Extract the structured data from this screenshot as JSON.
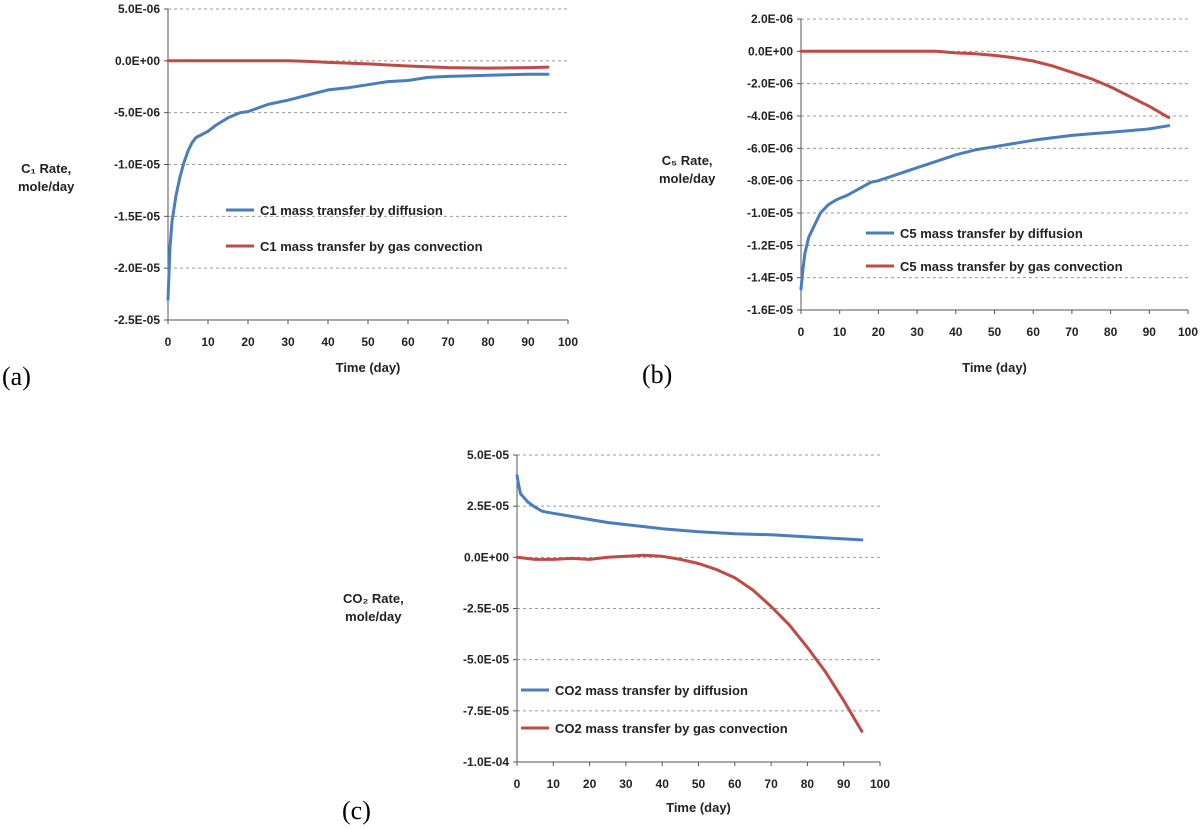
{
  "panel_labels": [
    "(a)",
    "(b)",
    "(c)"
  ],
  "ylabels": [
    {
      "line1": "C₁ Rate,",
      "line2": "mole/day"
    },
    {
      "line1": "C₅ Rate,",
      "line2": "mole/day"
    },
    {
      "line1": "CO₂ Rate,",
      "line2": "mole/day"
    }
  ],
  "colors": {
    "diffusion": "#4a7ebb",
    "convection": "#be4b48"
  },
  "chart_data": [
    {
      "type": "line",
      "xlabel": "Time (day)",
      "ylabel": "C1 Rate, mole/day",
      "xlim": [
        0,
        100
      ],
      "ylim": [
        -2.5e-05,
        5e-06
      ],
      "xticks": [
        0,
        10,
        20,
        30,
        40,
        50,
        60,
        70,
        80,
        90,
        100
      ],
      "yticks": [
        5e-06,
        0,
        -5e-06,
        -1e-05,
        -1.5e-05,
        -2e-05,
        -2.5e-05
      ],
      "yticklabels": [
        "5.0E-06",
        "0.0E+00",
        "-5.0E-06",
        "-1.0E-05",
        "-1.5E-05",
        "-2.0E-05",
        "-2.5E-05"
      ],
      "grid": "horizontal",
      "legend_position": "center-right",
      "series": [
        {
          "name": "C1 mass transfer by diffusion",
          "color": "#4a7ebb",
          "x": [
            0,
            0.5,
            1,
            2,
            3,
            4,
            5,
            6,
            7,
            8,
            10,
            12,
            15,
            18,
            20,
            25,
            30,
            35,
            40,
            45,
            50,
            55,
            60,
            65,
            70,
            75,
            80,
            85,
            90,
            95
          ],
          "y": [
            -2.3e-05,
            -1.8e-05,
            -1.55e-05,
            -1.3e-05,
            -1.12e-05,
            -9.8e-06,
            -8.7e-06,
            -7.9e-06,
            -7.4e-06,
            -7.2e-06,
            -6.8e-06,
            -6.2e-06,
            -5.5e-06,
            -5e-06,
            -4.9e-06,
            -4.2e-06,
            -3.8e-06,
            -3.3e-06,
            -2.8e-06,
            -2.6e-06,
            -2.3e-06,
            -2e-06,
            -1.9e-06,
            -1.6e-06,
            -1.5e-06,
            -1.45e-06,
            -1.4e-06,
            -1.35e-06,
            -1.3e-06,
            -1.3e-06
          ]
        },
        {
          "name": "C1 mass transfer by gas convection",
          "color": "#be4b48",
          "x": [
            0,
            10,
            20,
            30,
            35,
            40,
            50,
            60,
            70,
            80,
            90,
            95
          ],
          "y": [
            0,
            0,
            0,
            0,
            -5e-08,
            -1.5e-07,
            -3e-07,
            -5e-07,
            -6.5e-07,
            -7e-07,
            -6.5e-07,
            -6e-07
          ]
        }
      ]
    },
    {
      "type": "line",
      "xlabel": "Time (day)",
      "ylabel": "C5 Rate, mole/day",
      "xlim": [
        0,
        100
      ],
      "ylim": [
        -1.6e-05,
        2e-06
      ],
      "xticks": [
        0,
        10,
        20,
        30,
        40,
        50,
        60,
        70,
        80,
        90,
        100
      ],
      "yticks": [
        2e-06,
        0,
        -2e-06,
        -4e-06,
        -6e-06,
        -8e-06,
        -1e-05,
        -1.2e-05,
        -1.4e-05,
        -1.6e-05
      ],
      "yticklabels": [
        "2.0E-06",
        "0.0E+00",
        "-2.0E-06",
        "-4.0E-06",
        "-6.0E-06",
        "-8.0E-06",
        "-1.0E-05",
        "-1.2E-05",
        "-1.4E-05",
        "-1.6E-05"
      ],
      "grid": "horizontal",
      "legend_position": "bottom-right",
      "series": [
        {
          "name": "C5 mass transfer by diffusion",
          "color": "#4a7ebb",
          "x": [
            0,
            0.5,
            1,
            2,
            3,
            5,
            7,
            9,
            10,
            12,
            15,
            18,
            20,
            25,
            30,
            35,
            40,
            45,
            50,
            55,
            60,
            65,
            70,
            75,
            80,
            85,
            90,
            95
          ],
          "y": [
            -1.47e-05,
            -1.35e-05,
            -1.25e-05,
            -1.15e-05,
            -1.1e-05,
            -1e-05,
            -9.5e-06,
            -9.2e-06,
            -9.1e-06,
            -8.9e-06,
            -8.5e-06,
            -8.1e-06,
            -8e-06,
            -7.6e-06,
            -7.2e-06,
            -6.8e-06,
            -6.4e-06,
            -6.1e-06,
            -5.9e-06,
            -5.7e-06,
            -5.5e-06,
            -5.35e-06,
            -5.2e-06,
            -5.1e-06,
            -5e-06,
            -4.9e-06,
            -4.8e-06,
            -4.6e-06
          ]
        },
        {
          "name": "C5 mass transfer by gas convection",
          "color": "#be4b48",
          "x": [
            0,
            10,
            20,
            30,
            35,
            40,
            45,
            50,
            55,
            60,
            65,
            70,
            75,
            80,
            85,
            90,
            95
          ],
          "y": [
            0,
            0,
            0,
            0,
            0,
            -1e-07,
            -1.5e-07,
            -2.5e-07,
            -4e-07,
            -6e-07,
            -9e-07,
            -1.3e-06,
            -1.7e-06,
            -2.2e-06,
            -2.8e-06,
            -3.4e-06,
            -4.1e-06
          ]
        }
      ]
    },
    {
      "type": "line",
      "xlabel": "Time (day)",
      "ylabel": "CO2 Rate, mole/day",
      "xlim": [
        0,
        100
      ],
      "ylim": [
        -0.0001,
        5e-05
      ],
      "xticks": [
        0,
        10,
        20,
        30,
        40,
        50,
        60,
        70,
        80,
        90,
        100
      ],
      "yticks": [
        5e-05,
        2.5e-05,
        0,
        -2.5e-05,
        -5e-05,
        -7.5e-05,
        -0.0001
      ],
      "yticklabels": [
        "5.0E-05",
        "2.5E-05",
        "0.0E+00",
        "-2.5E-05",
        "-5.0E-05",
        "-7.5E-05",
        "-1.0E-04"
      ],
      "grid": "horizontal",
      "legend_position": "bottom-left",
      "series": [
        {
          "name": "CO2 mass transfer by diffusion",
          "color": "#4a7ebb",
          "x": [
            0,
            0.5,
            1,
            2,
            3,
            5,
            7,
            10,
            15,
            20,
            25,
            30,
            35,
            40,
            50,
            60,
            70,
            80,
            90,
            95
          ],
          "y": [
            4e-05,
            3.5e-05,
            3.1e-05,
            2.9e-05,
            2.7e-05,
            2.45e-05,
            2.25e-05,
            2.15e-05,
            2e-05,
            1.85e-05,
            1.7e-05,
            1.6e-05,
            1.5e-05,
            1.4e-05,
            1.25e-05,
            1.15e-05,
            1.1e-05,
            1e-05,
            9e-06,
            8.5e-06
          ]
        },
        {
          "name": "CO2 mass transfer by gas convection",
          "color": "#be4b48",
          "x": [
            0,
            5,
            10,
            15,
            20,
            25,
            30,
            35,
            40,
            45,
            50,
            55,
            60,
            65,
            70,
            75,
            80,
            85,
            90,
            95
          ],
          "y": [
            0,
            -1e-06,
            -1e-06,
            -5e-07,
            -1e-06,
            0,
            5e-07,
            1e-06,
            5e-07,
            -1e-06,
            -3e-06,
            -6e-06,
            -1e-05,
            -1.6e-05,
            -2.4e-05,
            -3.3e-05,
            -4.4e-05,
            -5.6e-05,
            -7e-05,
            -8.5e-05
          ]
        }
      ]
    }
  ]
}
